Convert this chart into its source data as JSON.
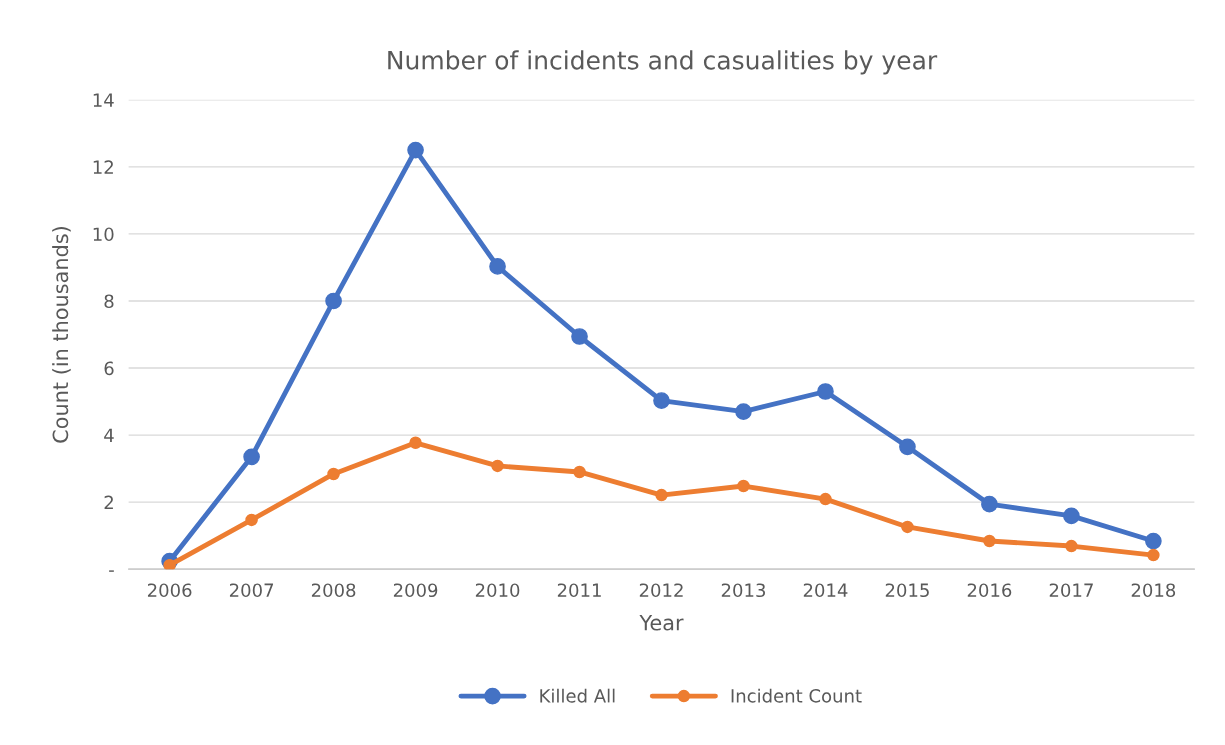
{
  "chart_data": {
    "type": "line",
    "title": "Number of incidents and casualities by year",
    "xlabel": "Year",
    "ylabel": "Count (in thousands)",
    "categories": [
      "2006",
      "2007",
      "2008",
      "2009",
      "2010",
      "2011",
      "2012",
      "2013",
      "2014",
      "2015",
      "2016",
      "2017",
      "2018"
    ],
    "series": [
      {
        "name": "Killed All",
        "color": "#4472c4",
        "values": [
          0.24,
          3.35,
          8.0,
          12.5,
          9.03,
          6.94,
          5.03,
          4.7,
          5.3,
          3.65,
          1.94,
          1.59,
          0.84
        ]
      },
      {
        "name": "Incident Count",
        "color": "#ed7d31",
        "values": [
          0.12,
          1.47,
          2.84,
          3.77,
          3.08,
          2.9,
          2.21,
          2.48,
          2.09,
          1.26,
          0.84,
          0.69,
          0.42
        ]
      }
    ],
    "ylim": [
      0,
      14
    ],
    "yticks": [
      {
        "value": 0,
        "label": "-"
      },
      2,
      4,
      6,
      8,
      10,
      12,
      14
    ],
    "grid": "y",
    "legend": "bottom",
    "marker": "circle",
    "line_style": "solid"
  }
}
